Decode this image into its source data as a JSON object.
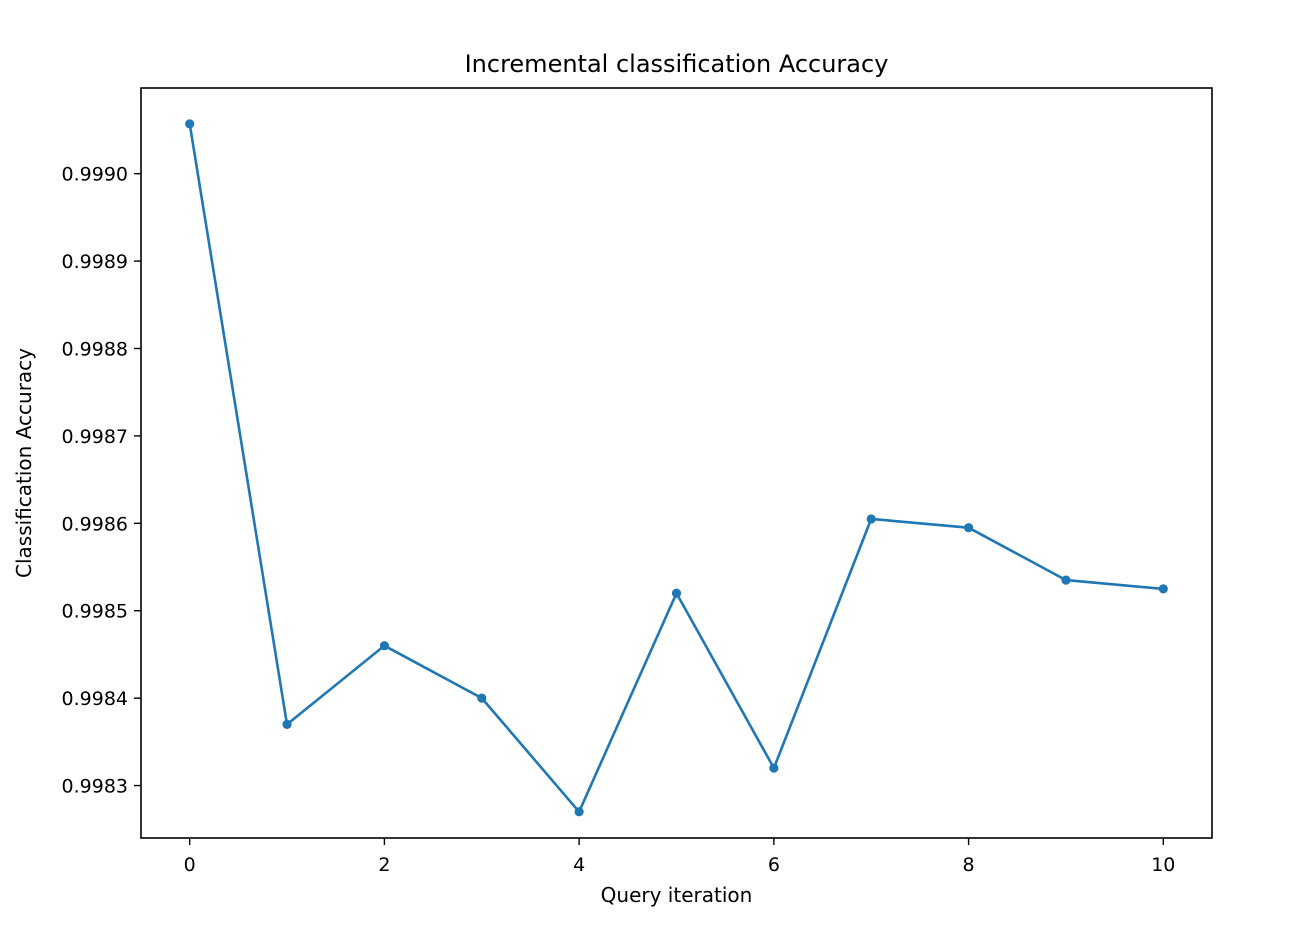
{
  "chart_data": {
    "type": "line",
    "title": "Incremental classification Accuracy",
    "xlabel": "Query iteration",
    "ylabel": "Classification Accuracy",
    "x": [
      0,
      1,
      2,
      3,
      4,
      5,
      6,
      7,
      8,
      9,
      10
    ],
    "series": [
      {
        "name": "accuracy",
        "color": "#1f77b4",
        "values": [
          0.999057,
          0.99837,
          0.99846,
          0.9984,
          0.99827,
          0.99852,
          0.99832,
          0.998605,
          0.998595,
          0.998535,
          0.998525
        ]
      }
    ],
    "xlim": [
      -0.5,
      10.5
    ],
    "ylim": [
      0.99824,
      0.999098
    ],
    "xticks": [
      0,
      2,
      4,
      6,
      8,
      10
    ],
    "xtick_labels": [
      "0",
      "2",
      "4",
      "6",
      "8",
      "10"
    ],
    "yticks": [
      0.9983,
      0.9984,
      0.9985,
      0.9986,
      0.9987,
      0.9988,
      0.9989,
      0.999
    ],
    "ytick_labels": [
      "0.9983",
      "0.9984",
      "0.9985",
      "0.9986",
      "0.9987",
      "0.9988",
      "0.9989",
      "0.9990"
    ],
    "grid": false,
    "legend": false
  }
}
